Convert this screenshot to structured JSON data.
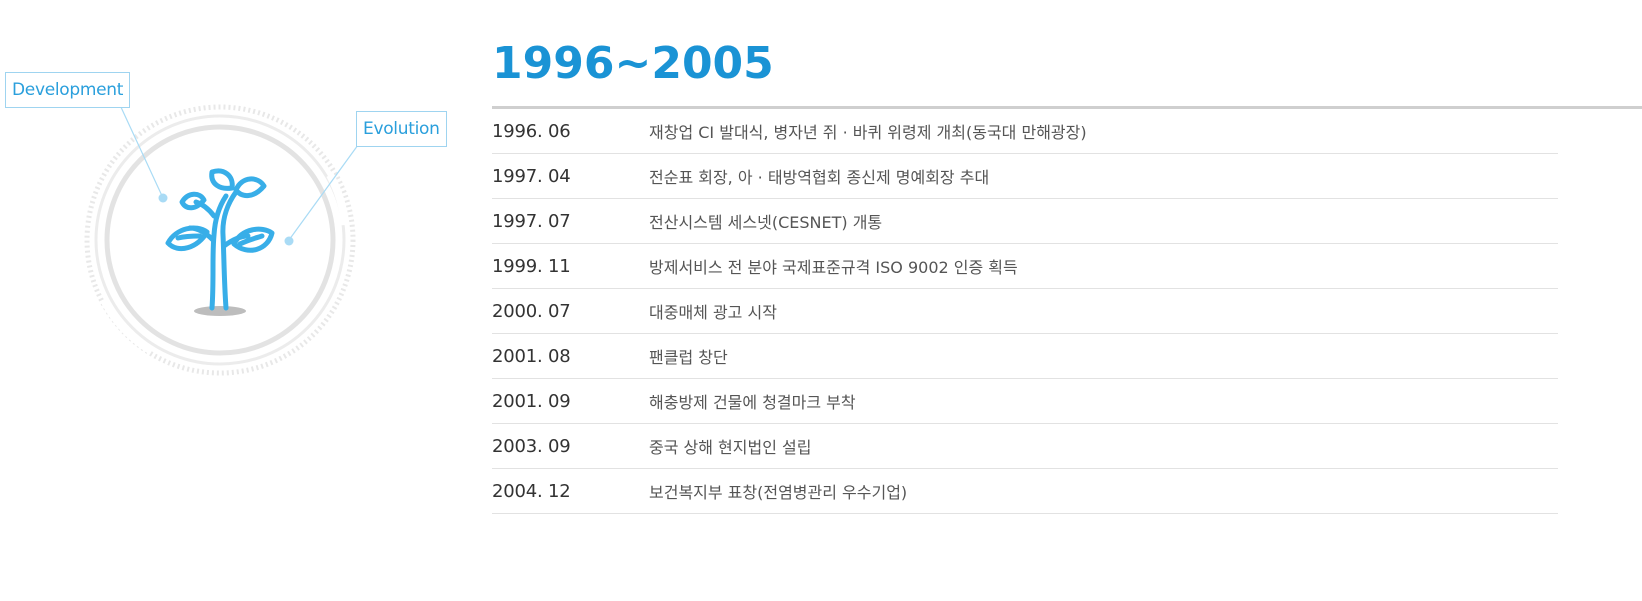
{
  "illustration": {
    "tags": {
      "development": "Development",
      "evolution": "Evolution"
    },
    "icon": "sprout-icon",
    "colors": {
      "accent": "#1a93d5",
      "sprout": "#38aee8",
      "ring": "#e6e6e6",
      "connector": "#a9dbf5"
    }
  },
  "timeline": {
    "title": "1996~2005",
    "items": [
      {
        "date": "1996. 06",
        "event": "재창업 CI 발대식, 병자년 쥐 · 바퀴 위령제 개최(동국대 만해광장)"
      },
      {
        "date": "1997. 04",
        "event": "전순표 회장, 아 · 태방역협회 종신제 명예회장 추대"
      },
      {
        "date": "1997. 07",
        "event": "전산시스템 세스넷(CESNET) 개통"
      },
      {
        "date": "1999. 11",
        "event": "방제서비스 전 분야 국제표준규격 ISO 9002 인증 획득"
      },
      {
        "date": "2000. 07",
        "event": "대중매체 광고 시작"
      },
      {
        "date": "2001. 08",
        "event": "팬클럽 창단"
      },
      {
        "date": "2001. 09",
        "event": "해충방제 건물에 청결마크 부착"
      },
      {
        "date": "2003. 09",
        "event": "중국 상해 현지법인 설립"
      },
      {
        "date": "2004. 12",
        "event": "보건복지부 표창(전염병관리 우수기업)"
      }
    ]
  }
}
